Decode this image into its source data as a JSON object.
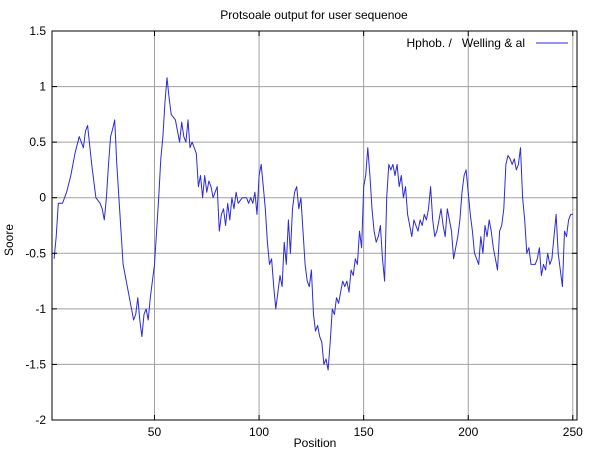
{
  "chart_data": {
    "type": "line",
    "title": "Protsoale output for user sequenoe",
    "xlabel": "Position",
    "ylabel": "Soore",
    "xlim": [
      1,
      252
    ],
    "ylim": [
      -2,
      1.5
    ],
    "xticks": [
      50,
      100,
      150,
      200,
      250
    ],
    "yticks": [
      -2,
      -1.5,
      -1,
      -0.5,
      0,
      0.5,
      1,
      1.5
    ],
    "grid": "vertical-and-horizontal",
    "legend_position": "top-right",
    "colors": {
      "series": "#2b2bd9",
      "grid": "#a0a0a0",
      "axis": "#000000"
    },
    "series": [
      {
        "name": "Hphob. /   Welling & al",
        "points": [
          [
            2,
            -0.55
          ],
          [
            3,
            -0.35
          ],
          [
            4,
            -0.05
          ],
          [
            6,
            -0.05
          ],
          [
            8,
            0.05
          ],
          [
            10,
            0.2
          ],
          [
            12,
            0.4
          ],
          [
            14,
            0.55
          ],
          [
            16,
            0.45
          ],
          [
            17,
            0.6
          ],
          [
            18,
            0.65
          ],
          [
            20,
            0.3
          ],
          [
            22,
            0.0
          ],
          [
            24,
            -0.05
          ],
          [
            25,
            -0.1
          ],
          [
            26,
            -0.2
          ],
          [
            27,
            0.0
          ],
          [
            28,
            0.3
          ],
          [
            29,
            0.55
          ],
          [
            30,
            0.62
          ],
          [
            31,
            0.7
          ],
          [
            32,
            0.3
          ],
          [
            33,
            0.0
          ],
          [
            34,
            -0.3
          ],
          [
            35,
            -0.6
          ],
          [
            36,
            -0.7
          ],
          [
            38,
            -0.9
          ],
          [
            40,
            -1.1
          ],
          [
            41,
            -1.05
          ],
          [
            42,
            -0.9
          ],
          [
            43,
            -1.1
          ],
          [
            44,
            -1.25
          ],
          [
            45,
            -1.05
          ],
          [
            46,
            -1.0
          ],
          [
            47,
            -1.1
          ],
          [
            48,
            -0.9
          ],
          [
            50,
            -0.6
          ],
          [
            51,
            -0.3
          ],
          [
            52,
            0.0
          ],
          [
            53,
            0.35
          ],
          [
            54,
            0.55
          ],
          [
            55,
            0.85
          ],
          [
            56,
            1.08
          ],
          [
            57,
            0.9
          ],
          [
            58,
            0.75
          ],
          [
            60,
            0.7
          ],
          [
            61,
            0.6
          ],
          [
            62,
            0.5
          ],
          [
            63,
            0.68
          ],
          [
            64,
            0.55
          ],
          [
            65,
            0.5
          ],
          [
            66,
            0.7
          ],
          [
            67,
            0.45
          ],
          [
            68,
            0.5
          ],
          [
            70,
            0.4
          ],
          [
            71,
            0.1
          ],
          [
            72,
            0.2
          ],
          [
            73,
            0.0
          ],
          [
            74,
            0.2
          ],
          [
            75,
            0.05
          ],
          [
            76,
            0.15
          ],
          [
            77,
            0.1
          ],
          [
            78,
            0.0
          ],
          [
            80,
            0.1
          ],
          [
            81,
            -0.3
          ],
          [
            82,
            -0.15
          ],
          [
            83,
            -0.1
          ],
          [
            84,
            -0.25
          ],
          [
            85,
            -0.05
          ],
          [
            86,
            -0.2
          ],
          [
            87,
            0.0
          ],
          [
            88,
            -0.1
          ],
          [
            89,
            0.05
          ],
          [
            90,
            -0.05
          ],
          [
            92,
            0.0
          ],
          [
            94,
            0.0
          ],
          [
            95,
            -0.05
          ],
          [
            96,
            0.0
          ],
          [
            97,
            -0.05
          ],
          [
            98,
            0.05
          ],
          [
            99,
            -0.15
          ],
          [
            100,
            0.2
          ],
          [
            101,
            0.3
          ],
          [
            102,
            0.1
          ],
          [
            103,
            -0.1
          ],
          [
            104,
            -0.4
          ],
          [
            105,
            -0.6
          ],
          [
            106,
            -0.55
          ],
          [
            107,
            -0.8
          ],
          [
            108,
            -1.0
          ],
          [
            109,
            -0.85
          ],
          [
            110,
            -0.7
          ],
          [
            111,
            -0.8
          ],
          [
            112,
            -0.4
          ],
          [
            113,
            -0.6
          ],
          [
            114,
            -0.2
          ],
          [
            115,
            -0.5
          ],
          [
            116,
            -0.1
          ],
          [
            117,
            0.05
          ],
          [
            118,
            0.1
          ],
          [
            119,
            -0.1
          ],
          [
            120,
            0.0
          ],
          [
            121,
            -0.3
          ],
          [
            122,
            -0.6
          ],
          [
            123,
            -0.75
          ],
          [
            124,
            -0.8
          ],
          [
            125,
            -0.65
          ],
          [
            126,
            -1.05
          ],
          [
            127,
            -1.2
          ],
          [
            128,
            -1.15
          ],
          [
            129,
            -1.25
          ],
          [
            130,
            -1.3
          ],
          [
            131,
            -1.5
          ],
          [
            132,
            -1.45
          ],
          [
            133,
            -1.55
          ],
          [
            134,
            -1.3
          ],
          [
            135,
            -1.0
          ],
          [
            136,
            -1.05
          ],
          [
            137,
            -0.9
          ],
          [
            138,
            -0.95
          ],
          [
            139,
            -0.85
          ],
          [
            140,
            -0.75
          ],
          [
            141,
            -0.8
          ],
          [
            142,
            -0.75
          ],
          [
            143,
            -0.85
          ],
          [
            144,
            -0.65
          ],
          [
            145,
            -0.7
          ],
          [
            146,
            -0.55
          ],
          [
            147,
            -0.6
          ],
          [
            148,
            -0.3
          ],
          [
            149,
            -0.45
          ],
          [
            150,
            0.1
          ],
          [
            151,
            0.2
          ],
          [
            152,
            0.45
          ],
          [
            153,
            0.2
          ],
          [
            154,
            -0.1
          ],
          [
            155,
            -0.3
          ],
          [
            156,
            -0.4
          ],
          [
            157,
            -0.35
          ],
          [
            158,
            -0.25
          ],
          [
            159,
            -0.55
          ],
          [
            160,
            -0.75
          ],
          [
            161,
            0.0
          ],
          [
            162,
            0.3
          ],
          [
            163,
            0.25
          ],
          [
            164,
            0.3
          ],
          [
            165,
            0.2
          ],
          [
            166,
            0.3
          ],
          [
            167,
            0.1
          ],
          [
            168,
            0.2
          ],
          [
            169,
            0.0
          ],
          [
            170,
            0.1
          ],
          [
            171,
            -0.15
          ],
          [
            172,
            -0.25
          ],
          [
            173,
            -0.35
          ],
          [
            174,
            -0.2
          ],
          [
            175,
            -0.25
          ],
          [
            176,
            -0.3
          ],
          [
            177,
            -0.2
          ],
          [
            178,
            -0.25
          ],
          [
            179,
            -0.15
          ],
          [
            180,
            -0.2
          ],
          [
            181,
            -0.1
          ],
          [
            182,
            0.1
          ],
          [
            183,
            -0.2
          ],
          [
            184,
            -0.35
          ],
          [
            185,
            -0.3
          ],
          [
            186,
            -0.2
          ],
          [
            187,
            -0.1
          ],
          [
            188,
            -0.25
          ],
          [
            189,
            -0.35
          ],
          [
            190,
            -0.1
          ],
          [
            191,
            -0.2
          ],
          [
            192,
            -0.3
          ],
          [
            193,
            -0.55
          ],
          [
            194,
            -0.45
          ],
          [
            195,
            -0.35
          ],
          [
            196,
            -0.2
          ],
          [
            197,
            0.05
          ],
          [
            198,
            0.2
          ],
          [
            199,
            0.25
          ],
          [
            200,
            0.05
          ],
          [
            201,
            -0.15
          ],
          [
            202,
            -0.3
          ],
          [
            203,
            -0.5
          ],
          [
            204,
            -0.55
          ],
          [
            205,
            -0.6
          ],
          [
            206,
            -0.35
          ],
          [
            207,
            -0.5
          ],
          [
            208,
            -0.25
          ],
          [
            209,
            -0.35
          ],
          [
            210,
            -0.2
          ],
          [
            211,
            -0.3
          ],
          [
            212,
            -0.45
          ],
          [
            213,
            -0.55
          ],
          [
            214,
            -0.65
          ],
          [
            215,
            -0.3
          ],
          [
            216,
            -0.25
          ],
          [
            217,
            -0.1
          ],
          [
            218,
            0.3
          ],
          [
            219,
            0.38
          ],
          [
            220,
            0.35
          ],
          [
            221,
            0.3
          ],
          [
            222,
            0.35
          ],
          [
            223,
            0.25
          ],
          [
            224,
            0.3
          ],
          [
            225,
            0.45
          ],
          [
            226,
            0.0
          ],
          [
            227,
            -0.2
          ],
          [
            228,
            -0.5
          ],
          [
            229,
            -0.45
          ],
          [
            230,
            -0.6
          ],
          [
            232,
            -0.6
          ],
          [
            233,
            -0.55
          ],
          [
            234,
            -0.45
          ],
          [
            235,
            -0.7
          ],
          [
            236,
            -0.6
          ],
          [
            237,
            -0.65
          ],
          [
            238,
            -0.5
          ],
          [
            239,
            -0.6
          ],
          [
            240,
            -0.55
          ],
          [
            241,
            -0.35
          ],
          [
            242,
            -0.15
          ],
          [
            243,
            -0.5
          ],
          [
            244,
            -0.65
          ],
          [
            245,
            -0.8
          ],
          [
            246,
            -0.3
          ],
          [
            247,
            -0.35
          ],
          [
            248,
            -0.2
          ],
          [
            249,
            -0.15
          ],
          [
            250,
            -0.15
          ]
        ]
      }
    ]
  }
}
